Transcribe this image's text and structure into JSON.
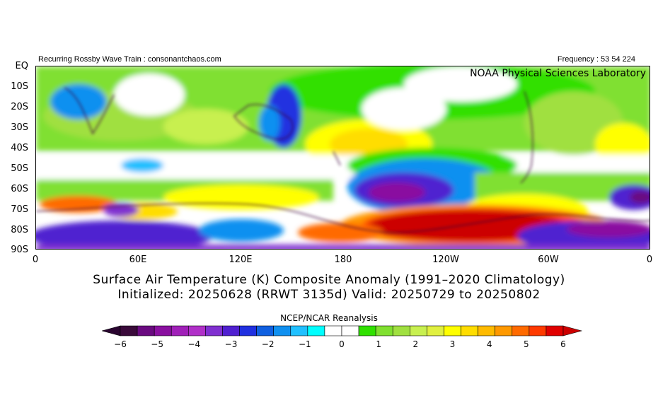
{
  "header": {
    "left_text": "Recurring Rossby Wave Train : consonantchaos.com",
    "right_text": "Frequency : 53 54 224",
    "lab_name": "NOAA Physical Sciences Laboratory"
  },
  "map": {
    "lat_labels": [
      "EQ",
      "10S",
      "20S",
      "30S",
      "40S",
      "50S",
      "60S",
      "70S",
      "80S",
      "90S"
    ],
    "lon_labels": [
      "0",
      "60E",
      "120E",
      "180",
      "120W",
      "60W",
      "0"
    ]
  },
  "title": {
    "line1": "Surface Air Temperature (K) Composite Anomaly (1991–2020 Climatology)",
    "line2": "Initialized: 20250628 (RRWT 3135d) Valid: 20250729 to 20250802"
  },
  "credit": "NCEP/NCAR Reanalysis",
  "colorbar": {
    "labels": [
      "−6",
      "−5",
      "−4",
      "−3",
      "−2",
      "−1",
      "0",
      "1",
      "2",
      "3",
      "4",
      "5",
      "6"
    ],
    "colors": [
      "#3a0a3a",
      "#6a0a80",
      "#8a10a0",
      "#a020b8",
      "#b030c8",
      "#8030d0",
      "#5020d0",
      "#2030e0",
      "#1060e0",
      "#1090f0",
      "#20c0ff",
      "#00ffff",
      "#ffffff",
      "#ffffff",
      "#30e000",
      "#80e030",
      "#a0e040",
      "#c8f050",
      "#e0f040",
      "#ffff00",
      "#ffdd00",
      "#ffbb00",
      "#ff9900",
      "#ff6a00",
      "#ff3a00",
      "#e00000"
    ],
    "under_color": "#2a0530",
    "over_color": "#cc0000"
  }
}
